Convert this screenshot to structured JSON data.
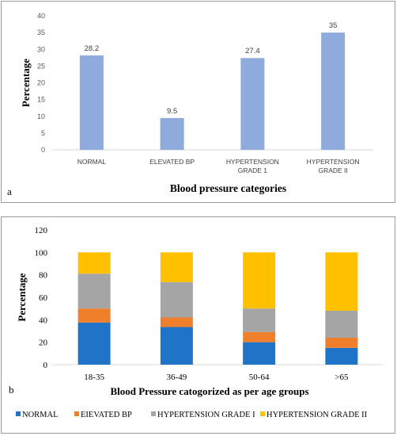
{
  "chart_data": [
    {
      "type": "bar",
      "panel_label": "a",
      "categories": [
        "NORMAL",
        "ELEVATED BP",
        "HYPERTENSION GRADE 1",
        "HYPERTENSION GRADE II"
      ],
      "category_lines": [
        [
          "NORMAL"
        ],
        [
          "ELEVATED BP"
        ],
        [
          "HYPERTENSION",
          "GRADE 1"
        ],
        [
          "HYPERTENSION",
          "GRADE II"
        ]
      ],
      "values": [
        28.2,
        9.5,
        27.4,
        35
      ],
      "data_labels": [
        "28.2",
        "9.5",
        "27.4",
        "35"
      ],
      "xlabel": "Blood pressure categories",
      "ylabel": "Percentage",
      "ylim": [
        0,
        40
      ],
      "yticks": [
        0,
        5,
        10,
        15,
        20,
        25,
        30,
        35,
        40
      ],
      "grid": false,
      "color": "#8faadc"
    },
    {
      "type": "bar",
      "stacked": true,
      "panel_label": "b",
      "categories": [
        "18-35",
        "36-49",
        "50-64",
        ">65"
      ],
      "series": [
        {
          "name": "NORMAL",
          "values": [
            37.5,
            33.5,
            20,
            15
          ],
          "color": "#1f74c8"
        },
        {
          "name": "EIEVATED BP",
          "values": [
            12.5,
            8.5,
            9,
            9
          ],
          "color": "#f07f2b"
        },
        {
          "name": "HYPERTENSION GRADE I",
          "values": [
            31,
            31.5,
            21,
            24
          ],
          "color": "#a5a5a5"
        },
        {
          "name": "HYPERTENSION GRADE II",
          "values": [
            19,
            26.5,
            50,
            52
          ],
          "color": "#ffc000"
        }
      ],
      "xlabel": "Blood Pressure catogorized as per age groups",
      "ylabel": "Percentage",
      "ylim": [
        0,
        120
      ],
      "yticks": [
        0,
        20,
        40,
        60,
        80,
        100,
        120
      ],
      "grid": false,
      "legend_position": "bottom"
    }
  ]
}
